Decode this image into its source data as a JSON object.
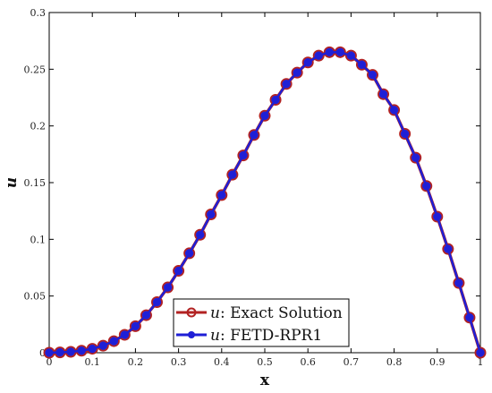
{
  "chart_data": {
    "type": "line",
    "xlabel": "x",
    "ylabel": "u",
    "xlim": [
      0,
      1
    ],
    "ylim": [
      0,
      0.3
    ],
    "xticks": [
      "0",
      "0.1",
      "0.2",
      "0.3",
      "0.4",
      "0.5",
      "0.6",
      "0.7",
      "0.8",
      "0.9",
      "1"
    ],
    "yticks": [
      "0",
      "0.05",
      "0.1",
      "0.15",
      "0.2",
      "0.25",
      "0.3"
    ],
    "grid": false,
    "legend_position": "bottom-center",
    "series": [
      {
        "name": "u: Exact Solution",
        "legend_var": "u",
        "legend_text": ": Exact Solution",
        "color": "#b22222",
        "marker": "open-circle",
        "x": [
          0,
          0.025,
          0.05,
          0.075,
          0.1,
          0.125,
          0.15,
          0.175,
          0.2,
          0.225,
          0.25,
          0.275,
          0.3,
          0.325,
          0.35,
          0.375,
          0.4,
          0.425,
          0.45,
          0.475,
          0.5,
          0.525,
          0.55,
          0.575,
          0.6,
          0.625,
          0.65,
          0.675,
          0.7,
          0.725,
          0.75,
          0.775,
          0.8,
          0.825,
          0.85,
          0.875,
          0.9,
          0.925,
          0.95,
          0.975,
          1
        ],
        "y": [
          0,
          0.0003,
          0.0008,
          0.0018,
          0.0035,
          0.0062,
          0.0102,
          0.0158,
          0.0234,
          0.0331,
          0.0446,
          0.0576,
          0.0722,
          0.0877,
          0.104,
          0.122,
          0.139,
          0.157,
          0.174,
          0.192,
          0.209,
          0.223,
          0.237,
          0.247,
          0.256,
          0.262,
          0.265,
          0.265,
          0.262,
          0.254,
          0.245,
          0.228,
          0.214,
          0.193,
          0.172,
          0.147,
          0.12,
          0.0915,
          0.0615,
          0.031,
          0
        ]
      },
      {
        "name": "u: FETD-RPR1",
        "legend_var": "u",
        "legend_text": ": FETD-RPR1",
        "color": "#1f1fd6",
        "marker": "filled-circle",
        "x": [
          0,
          0.025,
          0.05,
          0.075,
          0.1,
          0.125,
          0.15,
          0.175,
          0.2,
          0.225,
          0.25,
          0.275,
          0.3,
          0.325,
          0.35,
          0.375,
          0.4,
          0.425,
          0.45,
          0.475,
          0.5,
          0.525,
          0.55,
          0.575,
          0.6,
          0.625,
          0.65,
          0.675,
          0.7,
          0.725,
          0.75,
          0.775,
          0.8,
          0.825,
          0.85,
          0.875,
          0.9,
          0.925,
          0.95,
          0.975,
          1
        ],
        "y": [
          0,
          0.0003,
          0.0008,
          0.0018,
          0.0035,
          0.0062,
          0.0102,
          0.0158,
          0.0234,
          0.0331,
          0.0446,
          0.0576,
          0.0722,
          0.0877,
          0.104,
          0.122,
          0.139,
          0.157,
          0.174,
          0.192,
          0.209,
          0.223,
          0.237,
          0.247,
          0.256,
          0.262,
          0.265,
          0.265,
          0.262,
          0.254,
          0.245,
          0.228,
          0.214,
          0.193,
          0.172,
          0.147,
          0.12,
          0.0915,
          0.0615,
          0.031,
          0
        ]
      }
    ]
  }
}
